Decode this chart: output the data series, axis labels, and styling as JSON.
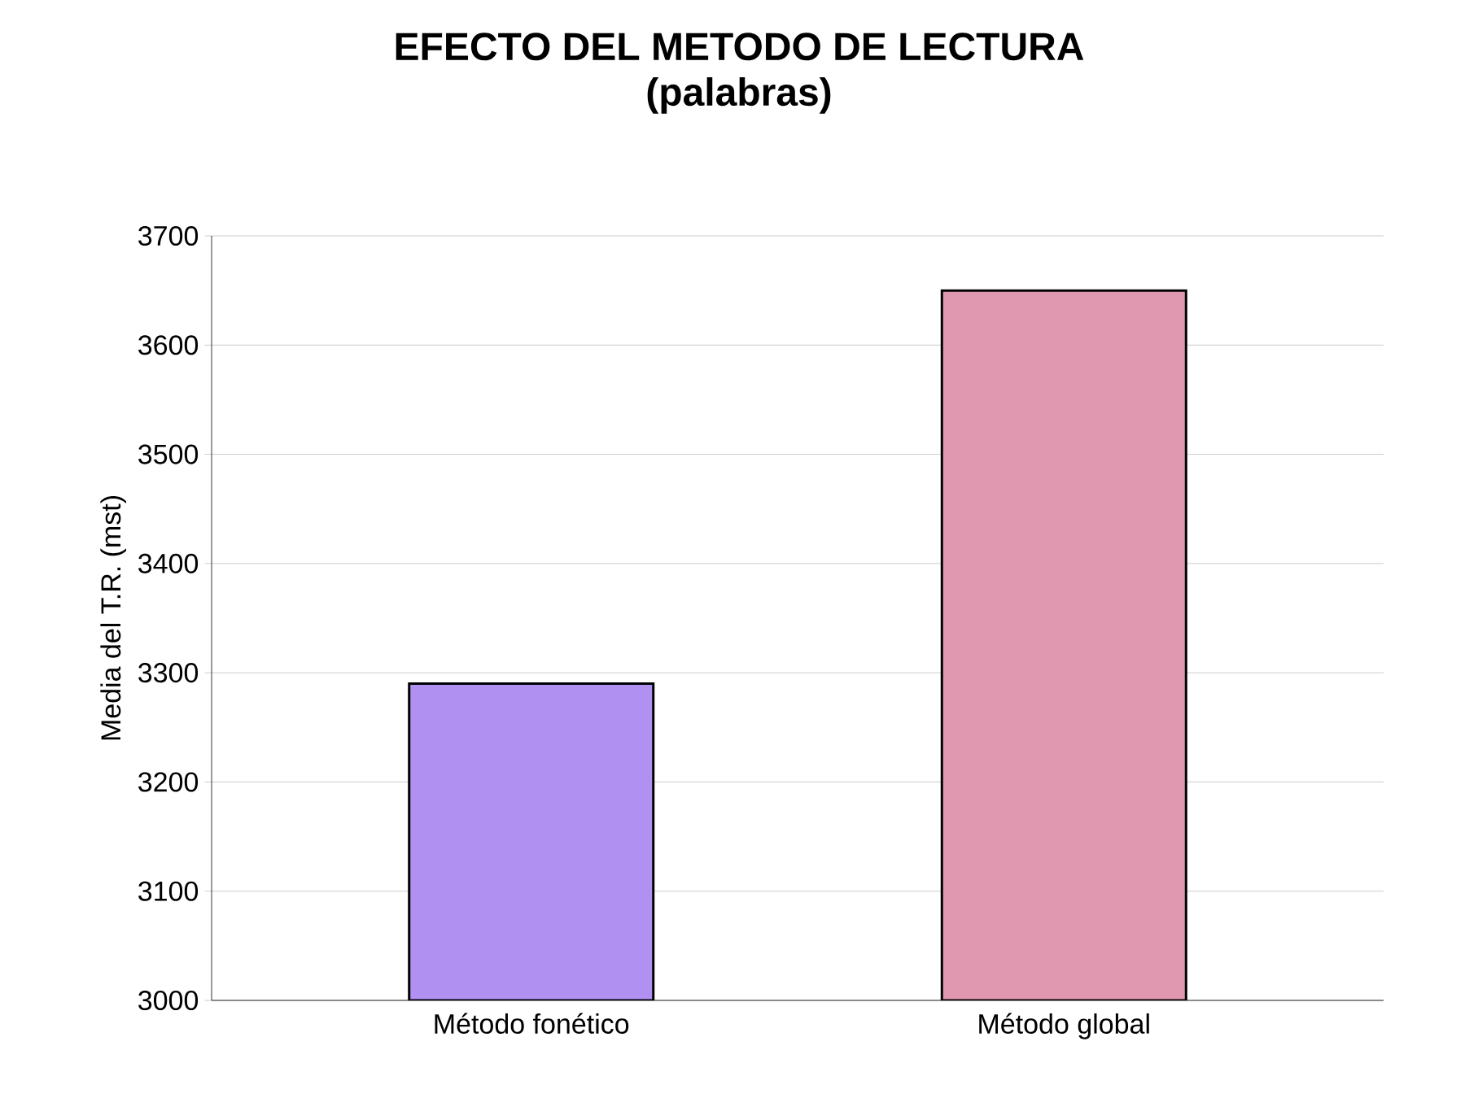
{
  "chart_data": {
    "type": "bar",
    "title": "EFECTO DEL METODO DE LECTURA",
    "subtitle": "(palabras)",
    "ylabel": "Media del T.R. (mst)",
    "categories": [
      "Método fonético",
      "Método global"
    ],
    "values": [
      3290,
      3650
    ],
    "colors": [
      "#b090f0",
      "#e098b0"
    ],
    "ylim": [
      3000,
      3700
    ],
    "yticks": [
      3000,
      3100,
      3200,
      3300,
      3400,
      3500,
      3600,
      3700
    ],
    "grid": "y"
  }
}
